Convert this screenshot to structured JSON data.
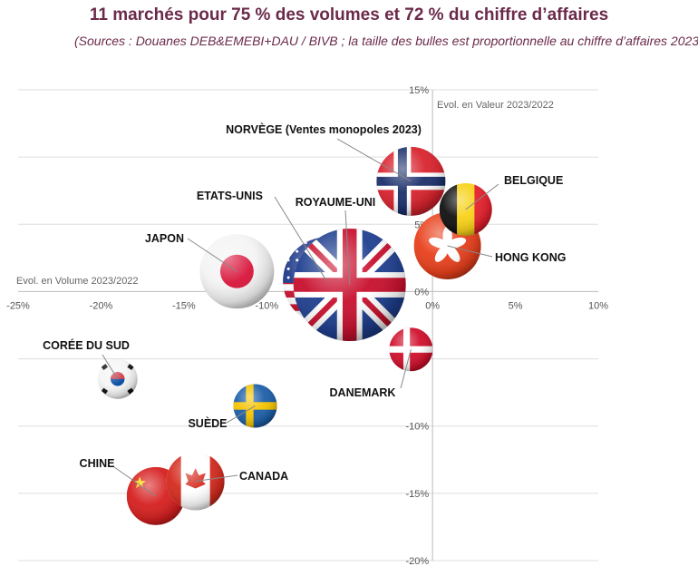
{
  "chart_data": {
    "type": "scatter",
    "title": "11 marchés pour 75 % des volumes et 72 % du chiffre d’affaires",
    "subtitle": "(Sources : Douanes DEB&EMEBI+DAU / BIVB ; la taille des bulles est proportionnelle au chiffre d’affaires 2023",
    "xlabel": "Evol. en Volume 2023/2022",
    "ylabel": "Evol. en Valeur 2023/2022",
    "xlim": [
      -25,
      10
    ],
    "ylim": [
      -20,
      15
    ],
    "xticks": [
      "-25%",
      "-20%",
      "-15%",
      "-10%",
      "-5%",
      "0%",
      "5%",
      "10%"
    ],
    "yticks": [
      "15%",
      "10%",
      "5%",
      "0%",
      "-5%",
      "-10%",
      "-15%",
      "-20%"
    ],
    "grid": "horizontal",
    "points": [
      {
        "label": "NORVÈGE (Ventes monopoles 2023)",
        "flag": "norway",
        "x": -1.3,
        "y": 8.2,
        "size": 38
      },
      {
        "label": "BELGIQUE",
        "flag": "belgium",
        "x": 2.0,
        "y": 6.1,
        "size": 29
      },
      {
        "label": "HONG KONG",
        "flag": "hongkong",
        "x": 0.9,
        "y": 3.4,
        "size": 37
      },
      {
        "label": "JAPON",
        "flag": "japan",
        "x": -11.8,
        "y": 1.5,
        "size": 41
      },
      {
        "label": "ETATS-UNIS",
        "flag": "usa",
        "x": -6.4,
        "y": 0.8,
        "size": 48
      },
      {
        "label": "ROYAUME-UNI",
        "flag": "uk",
        "x": -5.0,
        "y": 0.5,
        "size": 62
      },
      {
        "label": "DANEMARK",
        "flag": "denmark",
        "x": -1.3,
        "y": -4.3,
        "size": 24
      },
      {
        "label": "CORÉE DU SUD",
        "flag": "korea",
        "x": -19.0,
        "y": -6.5,
        "size": 22
      },
      {
        "label": "SUÈDE",
        "flag": "sweden",
        "x": -10.7,
        "y": -8.5,
        "size": 24
      },
      {
        "label": "CANADA",
        "flag": "canada",
        "x": -14.3,
        "y": -14.1,
        "size": 32
      },
      {
        "label": "CHINE",
        "flag": "china",
        "x": -16.7,
        "y": -15.2,
        "size": 32
      }
    ]
  }
}
